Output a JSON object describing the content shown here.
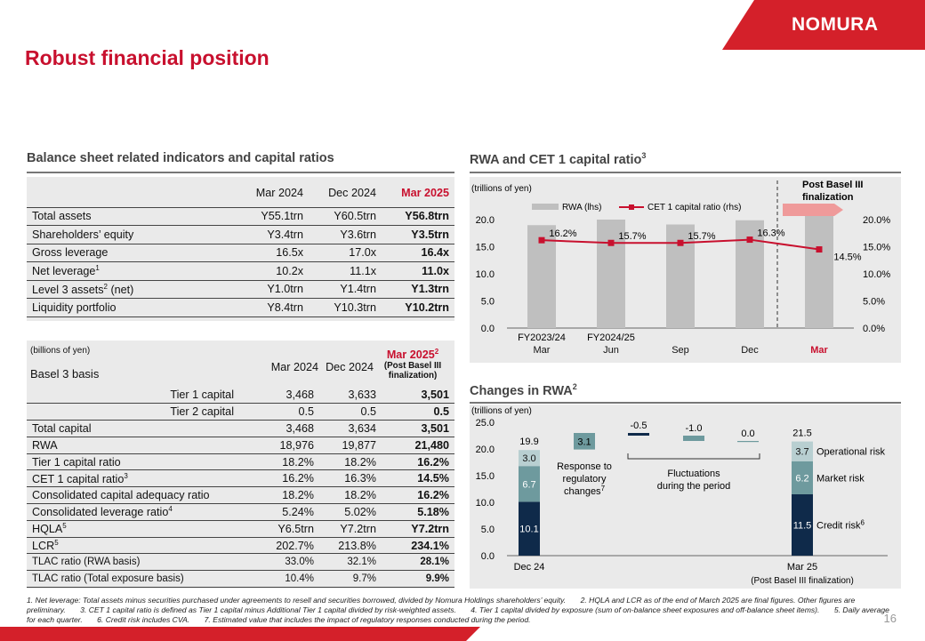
{
  "header": {
    "title": "Robust financial position",
    "logo": "NOMURA"
  },
  "balance": {
    "title": "Balance sheet related indicators and capital ratios",
    "cols": [
      "Mar 2024",
      "Dec 2024",
      "Mar 2025"
    ],
    "rows": [
      {
        "label": "Total assets",
        "sup": "",
        "suffix": "",
        "v": [
          "Y55.1trn",
          "Y60.5trn",
          "Y56.8trn"
        ]
      },
      {
        "label": "Shareholders’ equity",
        "sup": "",
        "suffix": "",
        "v": [
          "Y3.4trn",
          "Y3.6trn",
          "Y3.5trn"
        ]
      },
      {
        "label": "Gross leverage",
        "sup": "",
        "suffix": "",
        "v": [
          "16.5x",
          "17.0x",
          "16.4x"
        ]
      },
      {
        "label": "Net leverage",
        "sup": "1",
        "suffix": "",
        "v": [
          "10.2x",
          "11.1x",
          "11.0x"
        ]
      },
      {
        "label": "Level 3 assets",
        "sup": "2",
        "suffix": " (net)",
        "v": [
          "Y1.0trn",
          "Y1.4trn",
          "Y1.3trn"
        ]
      },
      {
        "label": "Liquidity portfolio",
        "sup": "",
        "suffix": "",
        "v": [
          "Y8.4trn",
          "Y10.3trn",
          "Y10.2trn"
        ]
      }
    ]
  },
  "basel": {
    "unit": "(billions of yen)",
    "basis": "Basel 3 basis",
    "cols": [
      "Mar 2024",
      "Dec 2024"
    ],
    "col3_title": "Mar 2025",
    "col3_sup": "2",
    "col3_sub1": "(Post Basel III",
    "col3_sub2": "finalization)",
    "rows": [
      {
        "label": "Tier 1 capital",
        "sup": "",
        "indent": true,
        "small": false,
        "v": [
          "3,468",
          "3,633",
          "3,501"
        ]
      },
      {
        "label": "Tier 2 capital",
        "sup": "",
        "indent": true,
        "small": false,
        "v": [
          "0.5",
          "0.5",
          "0.5"
        ]
      },
      {
        "label": "Total capital",
        "sup": "",
        "indent": false,
        "small": false,
        "v": [
          "3,468",
          "3,634",
          "3,501"
        ]
      },
      {
        "label": "RWA",
        "sup": "",
        "indent": false,
        "small": false,
        "v": [
          "18,976",
          "19,877",
          "21,480"
        ]
      },
      {
        "label": "Tier 1 capital ratio",
        "sup": "",
        "indent": false,
        "small": false,
        "v": [
          "18.2%",
          "18.2%",
          "16.2%"
        ]
      },
      {
        "label": "CET 1 capital ratio",
        "sup": "3",
        "indent": false,
        "small": false,
        "v": [
          "16.2%",
          "16.3%",
          "14.5%"
        ]
      },
      {
        "label": "Consolidated capital adequacy ratio",
        "sup": "",
        "indent": false,
        "small": false,
        "v": [
          "18.2%",
          "18.2%",
          "16.2%"
        ]
      },
      {
        "label": "Consolidated leverage ratio",
        "sup": "4",
        "indent": false,
        "small": false,
        "v": [
          "5.24%",
          "5.02%",
          "5.18%"
        ]
      },
      {
        "label": "HQLA",
        "sup": "5",
        "indent": false,
        "small": false,
        "v": [
          "Y6.5trn",
          "Y7.2trn",
          "Y7.2trn"
        ]
      },
      {
        "label": "LCR",
        "sup": "5",
        "indent": false,
        "small": false,
        "v": [
          "202.7%",
          "213.8%",
          "234.1%"
        ]
      },
      {
        "label": "TLAC ratio (RWA basis)",
        "sup": "",
        "indent": false,
        "small": true,
        "v": [
          "33.0%",
          "32.1%",
          "28.1%"
        ]
      },
      {
        "label": "TLAC ratio (Total exposure basis)",
        "sup": "",
        "indent": false,
        "small": true,
        "v": [
          "10.4%",
          "9.7%",
          "9.9%"
        ]
      }
    ]
  },
  "chart_data": [
    {
      "type": "bar",
      "title": "RWA and CET 1 capital ratio",
      "title_sup": "3",
      "unit": "(trillions of yen)",
      "categories": [
        [
          "FY2023/24",
          "Mar"
        ],
        [
          "FY2024/25",
          "Jun"
        ],
        [
          "",
          "Sep"
        ],
        [
          "",
          "Dec"
        ],
        [
          "",
          "Mar"
        ]
      ],
      "highlight_last": true,
      "series": [
        {
          "name": "RWA (lhs)",
          "values": [
            18.976,
            20.0,
            19.1,
            19.877,
            21.48
          ],
          "color": "#bfbfbf"
        },
        {
          "name": "CET 1 capital ratio (rhs)",
          "values": [
            16.2,
            15.7,
            15.7,
            16.3,
            14.5
          ],
          "labels": [
            "16.2%",
            "15.7%",
            "15.7%",
            "16.3%",
            "14.5%"
          ],
          "color": "#c8102e"
        }
      ],
      "ylim": [
        0,
        20
      ],
      "yticks": [
        "0.0",
        "5.0",
        "10.0",
        "15.0",
        "20.0"
      ],
      "y2lim": [
        0,
        20
      ],
      "y2ticks": [
        "0.0%",
        "5.0%",
        "10.0%",
        "15.0%",
        "20.0%"
      ],
      "annotation": [
        "Post Basel III",
        "finalization"
      ]
    },
    {
      "type": "waterfall",
      "title": "Changes in RWA",
      "title_sup": "2",
      "unit": "(trillions of yen)",
      "ylim": [
        0,
        25
      ],
      "yticks": [
        "0.0",
        "5.0",
        "10.0",
        "15.0",
        "20.0",
        "25.0"
      ],
      "start": {
        "label": "Dec 24",
        "total": "19.9",
        "segments": [
          {
            "name": "Credit risk",
            "value": 10.1,
            "label": "10.1"
          },
          {
            "name": "Market risk",
            "value": 6.7,
            "label": "6.7"
          },
          {
            "name": "Operational risk",
            "value": 3.0,
            "label": "3.0"
          }
        ]
      },
      "steps": [
        {
          "value": 3.1,
          "label": "3.1",
          "base": 19.9
        },
        {
          "value": -0.5,
          "label": "-0.5",
          "base": 23.0
        },
        {
          "value": -1.0,
          "label": "-1.0",
          "base": 22.5
        },
        {
          "value": 0.0,
          "label": "0.0",
          "base": 21.5
        }
      ],
      "end": {
        "label": "Mar 25",
        "sublabel": "(Post Basel III finalization)",
        "total": "21.5",
        "segments": [
          {
            "name": "Credit risk",
            "value": 11.5,
            "label": "11.5"
          },
          {
            "name": "Market risk",
            "value": 6.2,
            "label": "6.2"
          },
          {
            "name": "Operational risk",
            "value": 3.7,
            "label": "3.7"
          }
        ]
      },
      "legend": [
        {
          "label": "Operational risk",
          "sup": ""
        },
        {
          "label": "Market risk",
          "sup": ""
        },
        {
          "label": "Credit risk",
          "sup": "6"
        }
      ],
      "notes": {
        "regulatory": [
          "Response to",
          "regulatory",
          "changes"
        ],
        "regulatory_sup": "7",
        "fluct": [
          "Fluctuations",
          "during the period"
        ]
      },
      "colors": {
        "credit": "#0f2a4a",
        "market": "#6e9a9e",
        "operational": "#b8cfd1",
        "step": "#6e9a9e"
      }
    }
  ],
  "footnotes": [
    "1. Net leverage: Total assets minus securities purchased under agreements to resell and securities borrowed, divided by Nomura Holdings shareholders’ equity.",
    "2. HQLA and LCR as of the end of March 2025 are final figures. Other figures are preliminary.",
    "3. CET 1 capital ratio is defined as Tier 1 capital minus Additional Tier 1 capital divided by risk-weighted assets.",
    "4. Tier 1 capital divided by exposure (sum of on-balance sheet exposures and off-balance sheet items).",
    "5. Daily average for each quarter.",
    "6. Credit risk includes CVA.",
    "7. Estimated value that includes the impact of regulatory responses conducted during the period."
  ],
  "page_number": "16"
}
